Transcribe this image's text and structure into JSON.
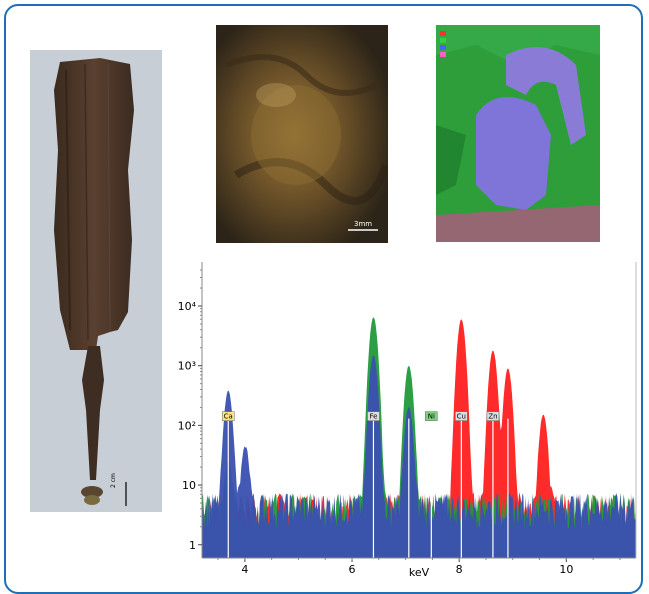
{
  "knife_photo": {
    "scale_label": "2 cm",
    "scale_icon": "scale-bar-icon"
  },
  "corrosion_photo": {
    "scale_label": "3mm",
    "scale_icon": "scale-bar-icon"
  },
  "edx_map": {
    "legend_swatches": [
      "#ff3030",
      "#30d040",
      "#5060ff",
      "#ff60c0"
    ]
  },
  "colors": {
    "frame": "#1f6fb7",
    "blue_series": "#3a50b0",
    "green_series": "#1f9a3a",
    "red_series": "#ff2020"
  },
  "chart_data": {
    "type": "area",
    "title": "",
    "xlabel": "keV",
    "ylabel": "",
    "xlim": [
      3.2,
      11.3
    ],
    "ylim": [
      0.6,
      45000
    ],
    "y_scale": "log",
    "x_ticks": [
      4,
      6,
      8,
      10
    ],
    "x_tick_labels": [
      "4",
      "6",
      "8",
      "10"
    ],
    "y_ticks": [
      1,
      10,
      100,
      1000,
      10000
    ],
    "y_tick_labels": [
      "1",
      "10",
      "10²",
      "10³",
      "10⁴"
    ],
    "grid": false,
    "background": 4,
    "series": [
      {
        "color": "#ff2020",
        "peaks": [
          {
            "x": 6.4,
            "y": 400
          },
          {
            "x": 7.06,
            "y": 150
          },
          {
            "x": 8.04,
            "y": 6000
          },
          {
            "x": 8.63,
            "y": 1800
          },
          {
            "x": 8.91,
            "y": 900
          },
          {
            "x": 9.57,
            "y": 150
          }
        ]
      },
      {
        "color": "#1f9a3a",
        "peaks": [
          {
            "x": 3.69,
            "y": 20
          },
          {
            "x": 6.4,
            "y": 6500
          },
          {
            "x": 7.06,
            "y": 1000
          }
        ]
      },
      {
        "color": "#3a50b0",
        "peaks": [
          {
            "x": 3.69,
            "y": 380
          },
          {
            "x": 4.01,
            "y": 40
          },
          {
            "x": 6.4,
            "y": 1500
          },
          {
            "x": 7.06,
            "y": 200
          }
        ]
      }
    ],
    "labels": [
      {
        "text": "Ca",
        "x": 3.69,
        "y": 140,
        "fill": "#ffe680"
      },
      {
        "text": "Fe",
        "x": 6.4,
        "y": 140,
        "fill": "#dddddd"
      },
      {
        "text": "Ni",
        "x": 7.48,
        "y": 140,
        "fill": "#7fd07f"
      },
      {
        "text": "Cu",
        "x": 8.04,
        "y": 140,
        "fill": "#dddddd"
      },
      {
        "text": "Zn",
        "x": 8.63,
        "y": 140,
        "fill": "#dddddd"
      }
    ],
    "marker_lines": [
      3.69,
      6.4,
      7.06,
      7.48,
      8.04,
      8.63,
      8.91
    ]
  }
}
